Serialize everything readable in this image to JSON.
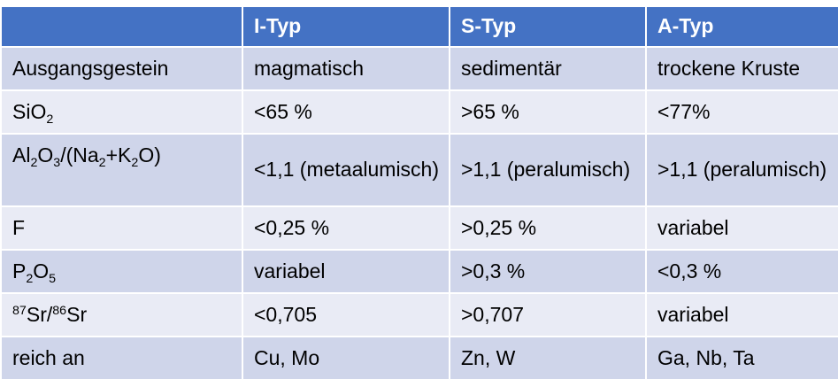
{
  "header": [
    "",
    "I-Typ",
    "S-Typ",
    "A-Typ"
  ],
  "rows": [
    {
      "label": "Ausgangsgestein",
      "values": [
        "magmatisch",
        "sedimentär",
        "trockene Kruste"
      ]
    },
    {
      "label": "SiO₂",
      "values": [
        "<65 %",
        ">65 %",
        "<77%"
      ]
    },
    {
      "label": "Al₂O₃/(Na₂+K₂O)",
      "values": [
        "<1,1 (metaalumisch)",
        ">1,1 (peralumisch)",
        ">1,1 (peralumisch)"
      ]
    },
    {
      "label": "F",
      "values": [
        "<0,25 %",
        ">0,25 %",
        "variabel"
      ]
    },
    {
      "label": "P₂O₅",
      "values": [
        "variabel",
        ">0,3 %",
        "<0,3 %"
      ]
    },
    {
      "label": "⁸⁷Sr/⁸⁶Sr",
      "values": [
        "<0,705",
        ">0,707",
        "variabel"
      ]
    },
    {
      "label": "reich an",
      "values": [
        "Cu, Mo",
        "Zn, W",
        "Ga, Nb, Ta"
      ]
    }
  ],
  "colors": {
    "header_bg": "#4472c4",
    "row_dark": "#cfd5ea",
    "row_light": "#e9ebf5",
    "header_text": "#ffffff"
  }
}
